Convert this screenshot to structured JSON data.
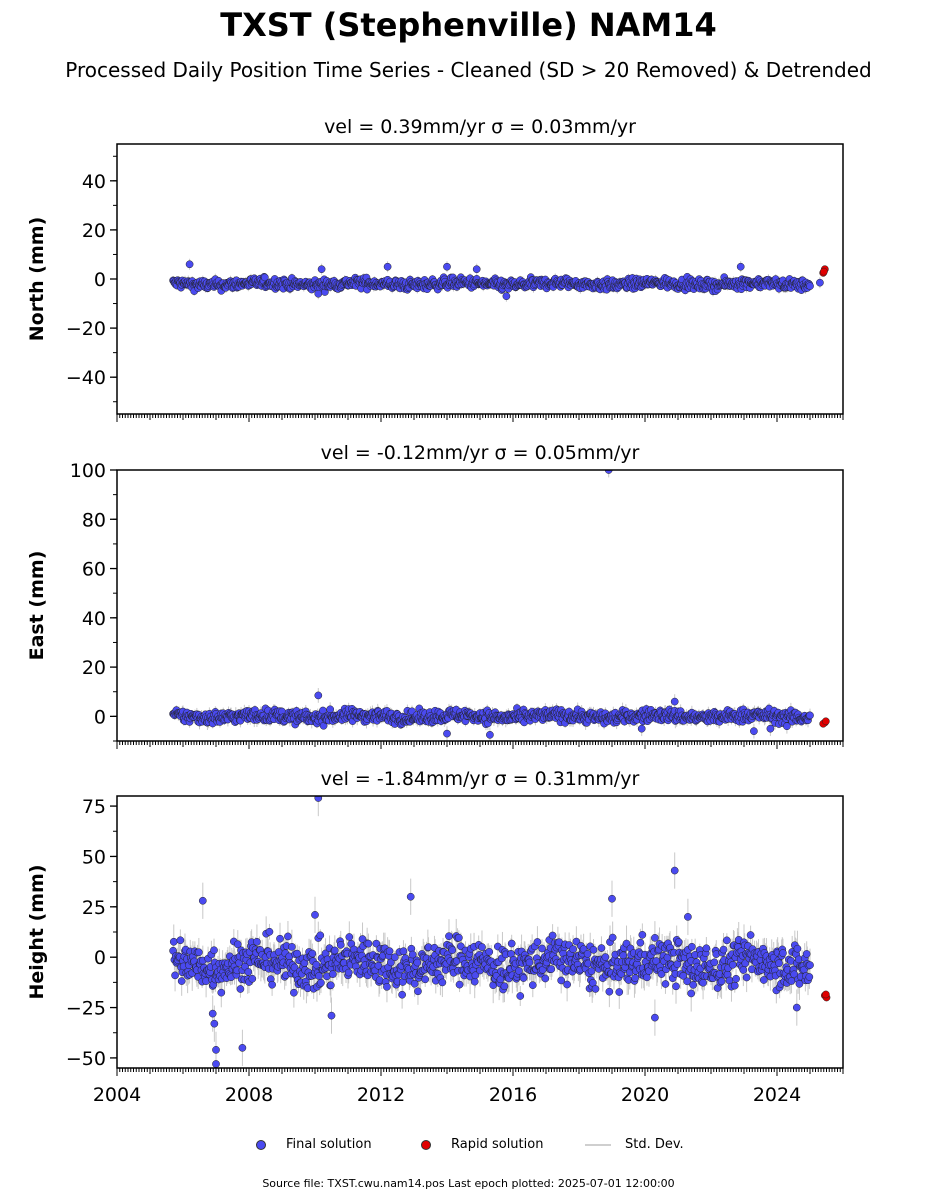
{
  "header": {
    "title": "TXST (Stephenville) NAM14",
    "subtitle": "Processed Daily Position Time Series - Cleaned (SD > 20 Removed) & Detrended"
  },
  "legend": {
    "final": "Final solution",
    "rapid": "Rapid solution",
    "stddev": "Std. Dev."
  },
  "footer": {
    "text": "Source file: TXST.cwu.nam14.pos  Last epoch plotted: 2025-07-01 12:00:00"
  },
  "colors": {
    "final": "#4a4af0",
    "rapid": "#e00000",
    "stddev": "#c8c8c8"
  },
  "chart_data": [
    {
      "type": "scatter",
      "title": "vel = 0.39mm/yr   σ = 0.03mm/yr",
      "ylabel": "North (mm)",
      "xlim": [
        2004.0,
        2026.0
      ],
      "ylim": [
        -55,
        55
      ],
      "yticks": [
        -40,
        -20,
        0,
        20,
        40
      ],
      "grid": false,
      "final_range": {
        "start": 2005.7,
        "end": 2025.0,
        "center": -2,
        "spread": 1.5,
        "err": 1.5
      },
      "outliers": [
        [
          2006.2,
          6
        ],
        [
          2010.2,
          4
        ],
        [
          2012.2,
          5
        ],
        [
          2014.0,
          5
        ],
        [
          2014.9,
          4
        ],
        [
          2010.1,
          -6
        ],
        [
          2015.8,
          -7
        ],
        [
          2022.9,
          5
        ],
        [
          2025.3,
          -1.5
        ]
      ],
      "rapid": [
        [
          2025.45,
          4
        ],
        [
          2025.4,
          2.5
        ],
        [
          2025.42,
          3
        ]
      ]
    },
    {
      "type": "scatter",
      "title": "vel = -0.12mm/yr   σ = 0.05mm/yr",
      "ylabel": "East (mm)",
      "xlim": [
        2004.0,
        2026.0
      ],
      "ylim": [
        -10,
        100
      ],
      "yticks": [
        0,
        20,
        40,
        60,
        80,
        100
      ],
      "grid": false,
      "final_range": {
        "start": 2005.7,
        "end": 2025.0,
        "center": 0,
        "spread": 1.8,
        "err": 2.0
      },
      "outliers": [
        [
          2010.1,
          8.5
        ],
        [
          2018.9,
          100
        ],
        [
          2020.9,
          6
        ],
        [
          2014.0,
          -7
        ],
        [
          2015.3,
          -7.5
        ],
        [
          2023.3,
          -6
        ],
        [
          2023.8,
          -5
        ],
        [
          2024.3,
          -4
        ],
        [
          2019.9,
          -5
        ]
      ],
      "rapid": [
        [
          2025.45,
          -2.5
        ],
        [
          2025.4,
          -3
        ],
        [
          2025.48,
          -2
        ]
      ]
    },
    {
      "type": "scatter",
      "title": "vel = -1.84mm/yr   σ = 0.31mm/yr",
      "ylabel": "Height (mm)",
      "xlim": [
        2004.0,
        2026.0
      ],
      "ylim": [
        -55,
        80
      ],
      "yticks": [
        -50,
        -25,
        0,
        25,
        50,
        75
      ],
      "grid": false,
      "final_range": {
        "start": 2005.7,
        "end": 2025.0,
        "center": -3,
        "spread": 8,
        "err": 6
      },
      "outliers": [
        [
          2010.1,
          79
        ],
        [
          2006.6,
          28
        ],
        [
          2006.9,
          -28
        ],
        [
          2006.95,
          -33
        ],
        [
          2007.0,
          -46
        ],
        [
          2007.0,
          -53
        ],
        [
          2007.8,
          -45
        ],
        [
          2012.9,
          30
        ],
        [
          2019.0,
          29
        ],
        [
          2020.9,
          43
        ],
        [
          2021.3,
          20
        ],
        [
          2021.4,
          -18
        ],
        [
          2020.3,
          -30
        ],
        [
          2010.5,
          -29
        ],
        [
          2010.0,
          21
        ],
        [
          2024.6,
          -25
        ]
      ],
      "rapid": [
        [
          2025.45,
          -19
        ],
        [
          2025.5,
          -20
        ],
        [
          2025.48,
          -18.5
        ]
      ]
    }
  ]
}
